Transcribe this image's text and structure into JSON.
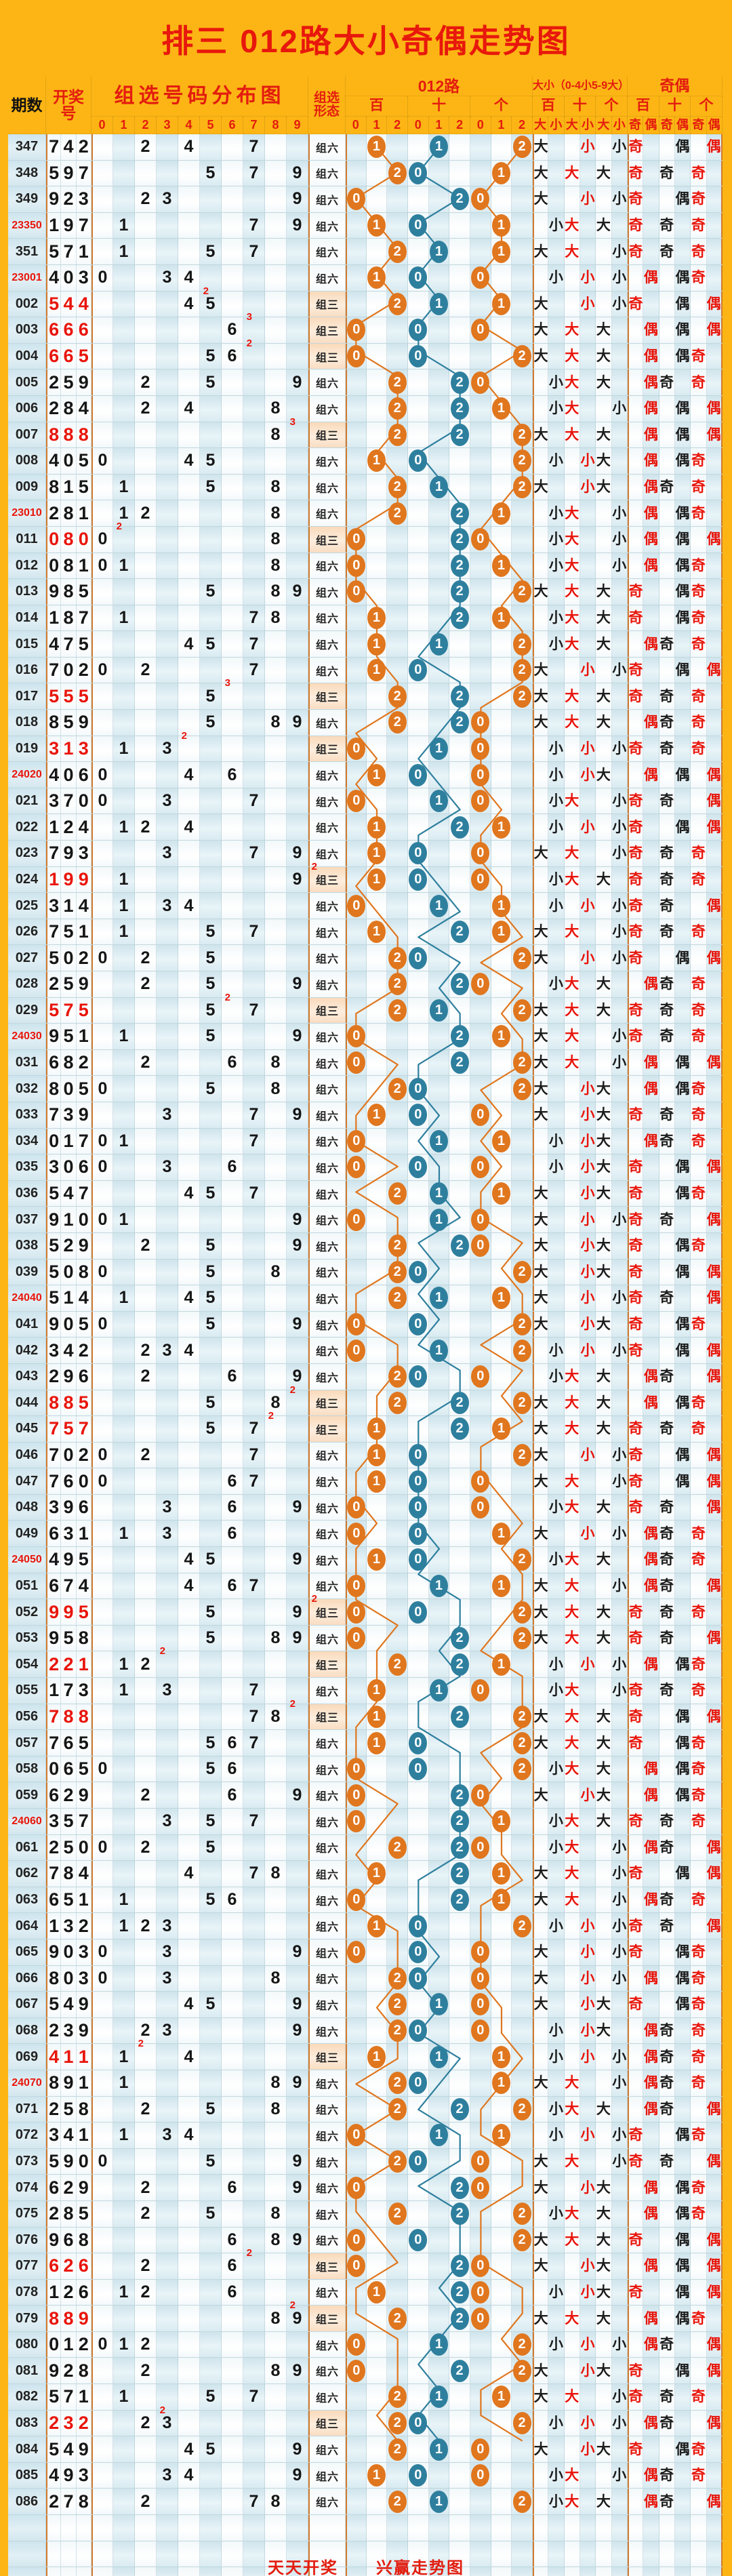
{
  "title": "排三 012路大小奇偶走势图",
  "header": {
    "period": "期数",
    "number": "开奖号",
    "distribution": "组选号码分布图",
    "distribution_digits": [
      "0",
      "1",
      "2",
      "3",
      "4",
      "5",
      "6",
      "7",
      "8",
      "9"
    ],
    "pattern": "组选形态",
    "lu": "012路",
    "daxiao": "大小（0-4小5-9大）",
    "jiou": "奇偶",
    "positions": [
      "百",
      "十",
      "个"
    ],
    "lu_digits": [
      "0",
      "1",
      "2"
    ],
    "dx_labels": [
      "大",
      "小"
    ],
    "jo_labels": [
      "奇",
      "偶"
    ]
  },
  "pattern_labels": {
    "zu6": "组六",
    "zu3": "组三"
  },
  "footer": {
    "left": "天天开奖",
    "right": "兴赢走势图"
  },
  "colors": {
    "header_bg": "#fcb514",
    "title_red": "#e8180c",
    "number_red": "#e8150b",
    "circle_bai_ge": "#e0761e",
    "circle_shi": "#2e7f9e",
    "dx_black": "#1c1c1c",
    "dx_red": "#e8150b",
    "zu3_highlight": "#f9ddc2",
    "section_border": "#d07a2e"
  },
  "chart_data": {
    "type": "table",
    "columns": [
      "期数",
      "开奖号",
      "组选形态",
      "012路(百十个)",
      "大小(百十个)",
      "奇偶(百十个)"
    ],
    "rows": [
      {
        "p": "347",
        "n": "742"
      },
      {
        "p": "348",
        "n": "597"
      },
      {
        "p": "349",
        "n": "923"
      },
      {
        "p": "23350",
        "n": "197",
        "yr": 1
      },
      {
        "p": "351",
        "n": "571"
      },
      {
        "p": "23001",
        "n": "403",
        "yr": 1
      },
      {
        "p": "002",
        "n": "544"
      },
      {
        "p": "003",
        "n": "666"
      },
      {
        "p": "004",
        "n": "665"
      },
      {
        "p": "005",
        "n": "259"
      },
      {
        "p": "006",
        "n": "284"
      },
      {
        "p": "007",
        "n": "888"
      },
      {
        "p": "008",
        "n": "405"
      },
      {
        "p": "009",
        "n": "815"
      },
      {
        "p": "23010",
        "n": "281",
        "yr": 1
      },
      {
        "p": "011",
        "n": "080"
      },
      {
        "p": "012",
        "n": "081"
      },
      {
        "p": "013",
        "n": "985"
      },
      {
        "p": "014",
        "n": "187"
      },
      {
        "p": "015",
        "n": "475"
      },
      {
        "p": "016",
        "n": "702"
      },
      {
        "p": "017",
        "n": "555"
      },
      {
        "p": "018",
        "n": "859"
      },
      {
        "p": "019",
        "n": "313"
      },
      {
        "p": "24020",
        "n": "406",
        "yr": 1
      },
      {
        "p": "021",
        "n": "370"
      },
      {
        "p": "022",
        "n": "124"
      },
      {
        "p": "023",
        "n": "793"
      },
      {
        "p": "024",
        "n": "199"
      },
      {
        "p": "025",
        "n": "314"
      },
      {
        "p": "026",
        "n": "751"
      },
      {
        "p": "027",
        "n": "502"
      },
      {
        "p": "028",
        "n": "259"
      },
      {
        "p": "029",
        "n": "575"
      },
      {
        "p": "24030",
        "n": "951",
        "yr": 1
      },
      {
        "p": "031",
        "n": "682"
      },
      {
        "p": "032",
        "n": "805"
      },
      {
        "p": "033",
        "n": "739"
      },
      {
        "p": "034",
        "n": "017"
      },
      {
        "p": "035",
        "n": "306"
      },
      {
        "p": "036",
        "n": "547"
      },
      {
        "p": "037",
        "n": "910"
      },
      {
        "p": "038",
        "n": "529"
      },
      {
        "p": "039",
        "n": "508"
      },
      {
        "p": "24040",
        "n": "514",
        "yr": 1
      },
      {
        "p": "041",
        "n": "905"
      },
      {
        "p": "042",
        "n": "342"
      },
      {
        "p": "043",
        "n": "296"
      },
      {
        "p": "044",
        "n": "885"
      },
      {
        "p": "045",
        "n": "757"
      },
      {
        "p": "046",
        "n": "702"
      },
      {
        "p": "047",
        "n": "760"
      },
      {
        "p": "048",
        "n": "396"
      },
      {
        "p": "049",
        "n": "631"
      },
      {
        "p": "24050",
        "n": "495",
        "yr": 1
      },
      {
        "p": "051",
        "n": "674"
      },
      {
        "p": "052",
        "n": "995"
      },
      {
        "p": "053",
        "n": "958"
      },
      {
        "p": "054",
        "n": "221"
      },
      {
        "p": "055",
        "n": "173"
      },
      {
        "p": "056",
        "n": "788"
      },
      {
        "p": "057",
        "n": "765"
      },
      {
        "p": "058",
        "n": "065"
      },
      {
        "p": "059",
        "n": "629"
      },
      {
        "p": "24060",
        "n": "357",
        "yr": 1
      },
      {
        "p": "061",
        "n": "250"
      },
      {
        "p": "062",
        "n": "784"
      },
      {
        "p": "063",
        "n": "651"
      },
      {
        "p": "064",
        "n": "132"
      },
      {
        "p": "065",
        "n": "903"
      },
      {
        "p": "066",
        "n": "803"
      },
      {
        "p": "067",
        "n": "549"
      },
      {
        "p": "068",
        "n": "239"
      },
      {
        "p": "069",
        "n": "411"
      },
      {
        "p": "24070",
        "n": "891",
        "yr": 1
      },
      {
        "p": "071",
        "n": "258"
      },
      {
        "p": "072",
        "n": "341"
      },
      {
        "p": "073",
        "n": "590"
      },
      {
        "p": "074",
        "n": "629"
      },
      {
        "p": "075",
        "n": "285"
      },
      {
        "p": "076",
        "n": "968"
      },
      {
        "p": "077",
        "n": "626"
      },
      {
        "p": "078",
        "n": "126"
      },
      {
        "p": "079",
        "n": "889"
      },
      {
        "p": "080",
        "n": "012"
      },
      {
        "p": "081",
        "n": "928"
      },
      {
        "p": "082",
        "n": "571"
      },
      {
        "p": "083",
        "n": "232"
      },
      {
        "p": "084",
        "n": "549"
      },
      {
        "p": "085",
        "n": "493"
      },
      {
        "p": "086",
        "n": "278"
      }
    ]
  }
}
